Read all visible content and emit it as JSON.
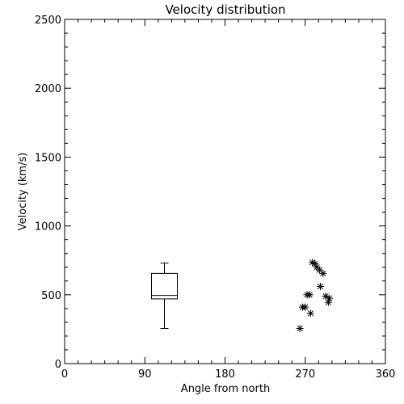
{
  "chart_data": {
    "type": "scatter",
    "title": "Velocity distribution",
    "xlabel": "Angle from north",
    "ylabel": "Velocity (km/s)",
    "xlim": [
      0,
      360
    ],
    "ylim": [
      0,
      2500
    ],
    "xticks": [
      0,
      90,
      180,
      270,
      360
    ],
    "yticks": [
      0,
      500,
      1000,
      1500,
      2000,
      2500
    ],
    "grid": false,
    "boxplot": {
      "x": 112,
      "whisker_low": 255,
      "q1": 470,
      "median": 495,
      "q3": 655,
      "whisker_high": 730
    },
    "points": [
      {
        "x": 264,
        "y": 255
      },
      {
        "x": 267,
        "y": 410
      },
      {
        "x": 270,
        "y": 410
      },
      {
        "x": 272,
        "y": 500
      },
      {
        "x": 275,
        "y": 500
      },
      {
        "x": 276,
        "y": 365
      },
      {
        "x": 278,
        "y": 735
      },
      {
        "x": 281,
        "y": 725
      },
      {
        "x": 283,
        "y": 700
      },
      {
        "x": 286,
        "y": 680
      },
      {
        "x": 287,
        "y": 560
      },
      {
        "x": 290,
        "y": 655
      },
      {
        "x": 293,
        "y": 490
      },
      {
        "x": 296,
        "y": 445
      },
      {
        "x": 297,
        "y": 475
      }
    ],
    "marker": "asterisk"
  }
}
